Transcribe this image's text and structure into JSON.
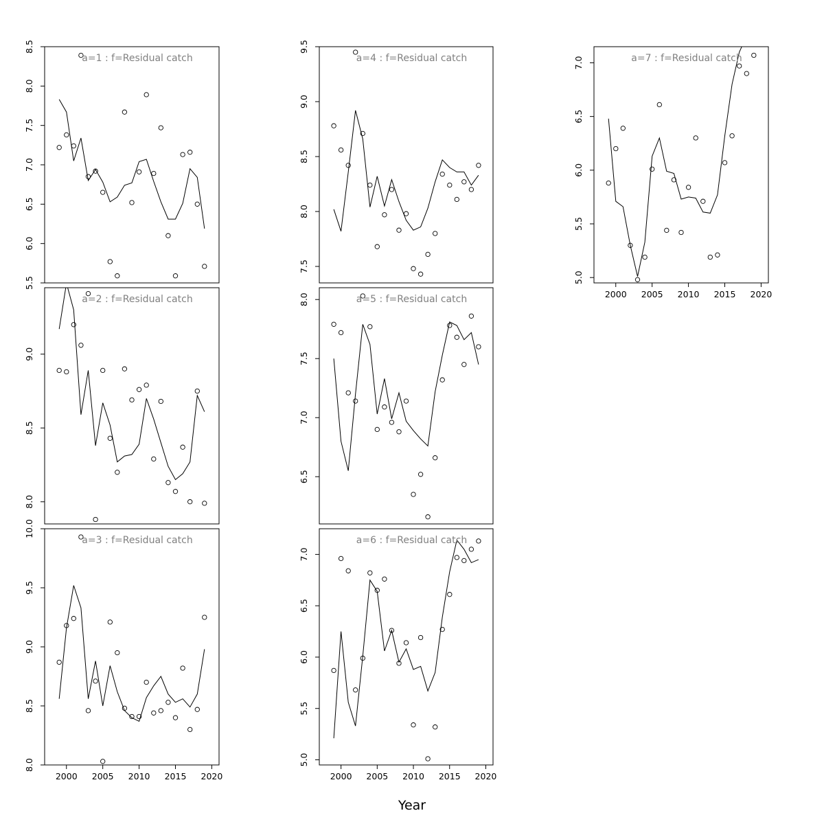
{
  "figure": {
    "xlabel": "Year"
  },
  "chart_data": [
    {
      "type": "line",
      "panel": "a=1",
      "title": "a=1  :  f=Residual catch",
      "xlim": [
        1997,
        2021
      ],
      "ylim": [
        5.5,
        8.5
      ],
      "xticks": [
        "2000",
        "2005",
        "2010",
        "2015",
        "2020"
      ],
      "show_xticks": false,
      "yticks": [
        "5.5",
        "6.0",
        "6.5",
        "7.0",
        "7.5",
        "8.0",
        "8.5"
      ],
      "x": [
        1999,
        2000,
        2001,
        2002,
        2003,
        2004,
        2005,
        2006,
        2007,
        2008,
        2009,
        2010,
        2011,
        2012,
        2013,
        2014,
        2015,
        2016,
        2017,
        2018,
        2019
      ],
      "line": [
        7.83,
        7.67,
        7.05,
        7.34,
        6.8,
        6.94,
        6.78,
        6.53,
        6.59,
        6.74,
        6.77,
        7.04,
        7.07,
        6.79,
        6.53,
        6.31,
        6.31,
        6.51,
        6.95,
        6.84,
        6.19
      ],
      "points": [
        7.22,
        7.38,
        7.24,
        8.39,
        6.85,
        6.92,
        6.65,
        5.77,
        5.59,
        7.67,
        6.52,
        6.91,
        7.89,
        6.89,
        7.47,
        6.1,
        5.59,
        7.13,
        7.16,
        6.5,
        5.71
      ]
    },
    {
      "type": "line",
      "panel": "a=2",
      "title": "a=2  :  f=Residual catch",
      "xlim": [
        1997,
        2021
      ],
      "ylim": [
        7.85,
        9.45
      ],
      "xticks": [
        "2000",
        "2005",
        "2010",
        "2015",
        "2020"
      ],
      "show_xticks": false,
      "yticks": [
        "8.0",
        "8.5",
        "9.0"
      ],
      "x": [
        1999,
        2000,
        2001,
        2002,
        2003,
        2004,
        2005,
        2006,
        2007,
        2008,
        2009,
        2010,
        2011,
        2012,
        2013,
        2014,
        2015,
        2016,
        2017,
        2018,
        2019
      ],
      "line": [
        9.17,
        9.48,
        9.3,
        8.59,
        8.89,
        8.38,
        8.67,
        8.52,
        8.27,
        8.31,
        8.32,
        8.39,
        8.7,
        8.56,
        8.4,
        8.24,
        8.15,
        8.19,
        8.27,
        8.72,
        8.61
      ],
      "points": [
        8.89,
        8.88,
        9.2,
        9.06,
        9.41,
        7.88,
        8.89,
        8.43,
        8.2,
        8.9,
        8.69,
        8.76,
        8.79,
        8.29,
        8.68,
        8.13,
        8.07,
        8.37,
        8.0,
        8.75,
        7.99
      ]
    },
    {
      "type": "line",
      "panel": "a=3",
      "title": "a=3  :  f=Residual catch",
      "xlim": [
        1997,
        2021
      ],
      "ylim": [
        8.0,
        10.0
      ],
      "xticks": [
        "2000",
        "2005",
        "2010",
        "2015",
        "2020"
      ],
      "show_xticks": true,
      "yticks": [
        "8.0",
        "8.5",
        "9.0",
        "9.5",
        "10.0"
      ],
      "x": [
        1999,
        2000,
        2001,
        2002,
        2003,
        2004,
        2005,
        2006,
        2007,
        2008,
        2009,
        2010,
        2011,
        2012,
        2013,
        2014,
        2015,
        2016,
        2017,
        2018,
        2019
      ],
      "line": [
        8.56,
        9.16,
        9.52,
        9.33,
        8.56,
        8.88,
        8.5,
        8.84,
        8.62,
        8.46,
        8.4,
        8.37,
        8.57,
        8.67,
        8.75,
        8.6,
        8.53,
        8.56,
        8.49,
        8.6,
        8.98
      ],
      "points": [
        8.87,
        9.18,
        9.24,
        9.93,
        8.46,
        8.71,
        8.03,
        9.21,
        8.95,
        8.48,
        8.41,
        8.41,
        8.7,
        8.44,
        8.46,
        8.53,
        8.4,
        8.82,
        8.3,
        8.47,
        9.25
      ]
    },
    {
      "type": "line",
      "panel": "a=4",
      "title": "a=4  :  f=Residual catch",
      "xlim": [
        1997,
        2021
      ],
      "ylim": [
        7.35,
        9.5
      ],
      "xticks": [
        "2000",
        "2005",
        "2010",
        "2015",
        "2020"
      ],
      "show_xticks": false,
      "yticks": [
        "7.5",
        "8.0",
        "8.5",
        "9.0",
        "9.5"
      ],
      "x": [
        1999,
        2000,
        2001,
        2002,
        2003,
        2004,
        2005,
        2006,
        2007,
        2008,
        2009,
        2010,
        2011,
        2012,
        2013,
        2014,
        2015,
        2016,
        2017,
        2018,
        2019
      ],
      "line": [
        8.02,
        7.82,
        8.36,
        8.92,
        8.66,
        8.04,
        8.32,
        8.05,
        8.29,
        8.09,
        7.92,
        7.83,
        7.86,
        8.03,
        8.27,
        8.47,
        8.4,
        8.36,
        8.36,
        8.24,
        8.33
      ],
      "points": [
        8.78,
        8.56,
        8.42,
        9.45,
        8.71,
        8.24,
        7.68,
        7.97,
        8.2,
        7.83,
        7.98,
        7.48,
        7.43,
        7.61,
        7.8,
        8.34,
        8.24,
        8.11,
        8.27,
        8.2,
        8.42
      ]
    },
    {
      "type": "line",
      "panel": "a=5",
      "title": "a=5  :  f=Residual catch",
      "xlim": [
        1997,
        2021
      ],
      "ylim": [
        6.1,
        8.1
      ],
      "xticks": [
        "2000",
        "2005",
        "2010",
        "2015",
        "2020"
      ],
      "show_xticks": false,
      "yticks": [
        "6.5",
        "7.0",
        "7.5",
        "8.0"
      ],
      "x": [
        1999,
        2000,
        2001,
        2002,
        2003,
        2004,
        2005,
        2006,
        2007,
        2008,
        2009,
        2010,
        2011,
        2012,
        2013,
        2014,
        2015,
        2016,
        2017,
        2018,
        2019
      ],
      "line": [
        7.5,
        6.8,
        6.55,
        7.2,
        7.79,
        7.62,
        7.03,
        7.33,
        6.99,
        7.21,
        6.97,
        6.89,
        6.82,
        6.76,
        7.22,
        7.53,
        7.81,
        7.78,
        7.66,
        7.72,
        7.45
      ],
      "points": [
        7.79,
        7.72,
        7.21,
        7.14,
        8.03,
        7.77,
        6.9,
        7.09,
        6.96,
        6.88,
        7.14,
        6.35,
        6.52,
        6.16,
        6.66,
        7.32,
        7.78,
        7.68,
        7.45,
        7.86,
        7.6
      ]
    },
    {
      "type": "line",
      "panel": "a=6",
      "title": "a=6  :  f=Residual catch",
      "xlim": [
        1997,
        2021
      ],
      "ylim": [
        4.95,
        7.25
      ],
      "xticks": [
        "2000",
        "2005",
        "2010",
        "2015",
        "2020"
      ],
      "show_xticks": true,
      "yticks": [
        "5.0",
        "5.5",
        "6.0",
        "6.5",
        "7.0"
      ],
      "x": [
        1999,
        2000,
        2001,
        2002,
        2003,
        2004,
        2005,
        2006,
        2007,
        2008,
        2009,
        2010,
        2011,
        2012,
        2013,
        2014,
        2015,
        2016,
        2017,
        2018,
        2019
      ],
      "line": [
        5.21,
        6.25,
        5.56,
        5.33,
        6.01,
        6.75,
        6.64,
        6.06,
        6.26,
        5.95,
        6.08,
        5.88,
        5.91,
        5.67,
        5.85,
        6.39,
        6.83,
        7.14,
        7.05,
        6.92,
        6.95
      ],
      "points": [
        5.87,
        6.96,
        6.84,
        5.68,
        5.99,
        6.82,
        6.65,
        6.76,
        6.26,
        5.94,
        6.14,
        5.34,
        6.19,
        5.01,
        5.32,
        6.27,
        6.61,
        6.97,
        6.94,
        7.05,
        7.13
      ]
    },
    {
      "type": "line",
      "panel": "a=7",
      "title": "a=7  :  f=Residual catch",
      "xlim": [
        1997,
        2021
      ],
      "ylim": [
        4.95,
        7.15
      ],
      "xticks": [
        "2000",
        "2005",
        "2010",
        "2015",
        "2020"
      ],
      "show_xticks": true,
      "yticks": [
        "5.0",
        "5.5",
        "6.0",
        "6.5",
        "7.0"
      ],
      "x": [
        1999,
        2000,
        2001,
        2002,
        2003,
        2004,
        2005,
        2006,
        2007,
        2008,
        2009,
        2010,
        2011,
        2012,
        2013,
        2014,
        2015,
        2016,
        2017,
        2018,
        2019
      ],
      "line": [
        6.48,
        5.71,
        5.66,
        5.3,
        5.01,
        5.33,
        6.13,
        6.3,
        5.99,
        5.97,
        5.73,
        5.75,
        5.74,
        5.61,
        5.6,
        5.77,
        6.32,
        6.8,
        7.1,
        7.25,
        7.35
      ],
      "points": [
        5.88,
        6.2,
        6.39,
        5.3,
        4.98,
        5.19,
        6.01,
        6.61,
        5.44,
        5.91,
        5.42,
        5.84,
        6.3,
        5.71,
        5.19,
        5.21,
        6.07,
        6.32,
        6.97,
        6.9,
        7.07
      ]
    }
  ]
}
